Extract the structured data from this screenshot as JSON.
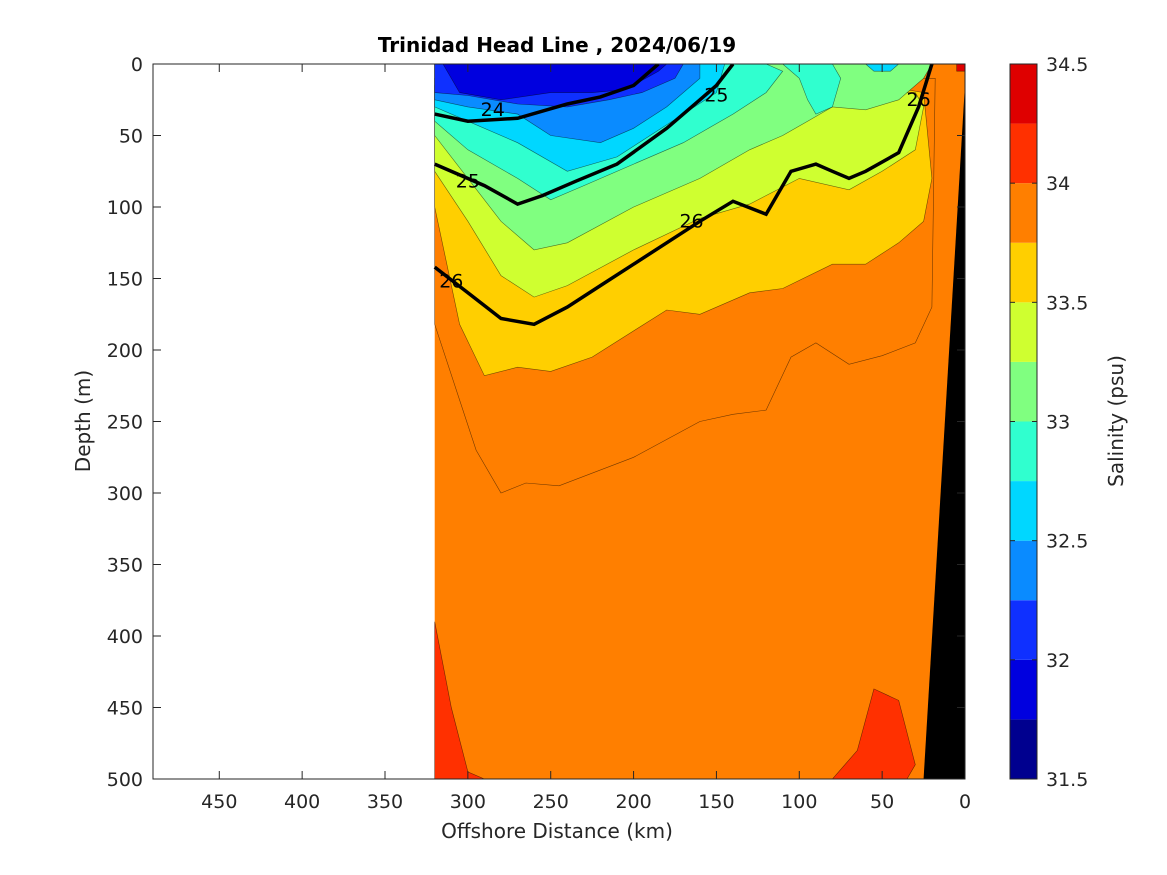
{
  "chart_data": {
    "type": "heatmap",
    "subtype": "filled contour section",
    "title": "Trinidad Head Line , 2024/06/19",
    "xlabel": "Offshore Distance (km)",
    "ylabel": "Depth (m)",
    "xlim": [
      490,
      0
    ],
    "x_reversed": true,
    "ylim": [
      0,
      500
    ],
    "y_reversed": true,
    "xticks": [
      450,
      400,
      350,
      300,
      250,
      200,
      150,
      100,
      50,
      0
    ],
    "yticks": [
      0,
      50,
      100,
      150,
      200,
      250,
      300,
      350,
      400,
      450,
      500
    ],
    "data_x_extent_km": [
      320,
      0
    ],
    "colorbar": {
      "label": "Salinity (psu)",
      "limits": [
        31.5,
        34.5
      ],
      "levels": [
        31.5,
        31.75,
        32.0,
        32.25,
        32.5,
        32.75,
        33.0,
        33.25,
        33.5,
        33.75,
        34.0,
        34.25,
        34.5
      ],
      "colors": [
        "#00008f",
        "#0000df",
        "#0f30ff",
        "#0a8bff",
        "#00d7ff",
        "#30ffcf",
        "#80ff80",
        "#cfff30",
        "#ffcf00",
        "#ff7f00",
        "#ff3000",
        "#df0000"
      ],
      "ticks": [
        31.5,
        32,
        32.5,
        33,
        33.5,
        34,
        34.5
      ]
    },
    "layers": [
      {
        "level_min": 34.0,
        "boundary": [
          [
            320,
            390
          ],
          [
            310,
            450
          ],
          [
            300,
            495
          ],
          [
            290,
            500
          ],
          [
            320,
            500
          ]
        ]
      },
      {
        "level_min": 34.0,
        "boundary": [
          [
            65,
            480
          ],
          [
            55,
            437
          ],
          [
            40,
            445
          ],
          [
            30,
            490
          ],
          [
            35,
            500
          ],
          [
            80,
            500
          ]
        ]
      },
      {
        "level_min": 33.75,
        "boundary": [
          [
            320,
            182
          ],
          [
            305,
            235
          ],
          [
            295,
            270
          ],
          [
            280,
            300
          ],
          [
            265,
            293
          ],
          [
            245,
            295
          ],
          [
            200,
            275
          ],
          [
            160,
            250
          ],
          [
            140,
            245
          ],
          [
            120,
            242
          ],
          [
            105,
            205
          ],
          [
            90,
            195
          ],
          [
            70,
            210
          ],
          [
            50,
            204
          ],
          [
            30,
            195
          ],
          [
            20,
            170
          ],
          [
            18,
            10
          ],
          [
            320,
            10
          ]
        ]
      },
      {
        "level_min": 33.5,
        "boundary": [
          [
            320,
            100
          ],
          [
            305,
            182
          ],
          [
            290,
            218
          ],
          [
            270,
            212
          ],
          [
            250,
            215
          ],
          [
            225,
            205
          ],
          [
            180,
            172
          ],
          [
            160,
            175
          ],
          [
            130,
            160
          ],
          [
            110,
            157
          ],
          [
            80,
            140
          ],
          [
            60,
            140
          ],
          [
            40,
            125
          ],
          [
            25,
            110
          ],
          [
            20,
            80
          ],
          [
            25,
            20
          ],
          [
            50,
            15
          ],
          [
            320,
            15
          ]
        ]
      },
      {
        "level_min": 33.25,
        "boundary": [
          [
            320,
            75
          ],
          [
            300,
            110
          ],
          [
            280,
            148
          ],
          [
            260,
            163
          ],
          [
            240,
            155
          ],
          [
            200,
            130
          ],
          [
            160,
            108
          ],
          [
            130,
            98
          ],
          [
            100,
            80
          ],
          [
            70,
            88
          ],
          [
            50,
            75
          ],
          [
            30,
            60
          ],
          [
            25,
            30
          ],
          [
            30,
            20
          ],
          [
            320,
            20
          ]
        ]
      },
      {
        "level_min": 33.0,
        "boundary": [
          [
            320,
            50
          ],
          [
            300,
            80
          ],
          [
            280,
            110
          ],
          [
            260,
            130
          ],
          [
            240,
            125
          ],
          [
            200,
            100
          ],
          [
            160,
            80
          ],
          [
            130,
            60
          ],
          [
            110,
            50
          ],
          [
            95,
            40
          ],
          [
            80,
            30
          ],
          [
            60,
            32
          ],
          [
            40,
            25
          ],
          [
            25,
            10
          ],
          [
            20,
            0
          ],
          [
            320,
            0
          ]
        ]
      },
      {
        "level_min": 32.75,
        "boundary": [
          [
            320,
            40
          ],
          [
            300,
            60
          ],
          [
            270,
            80
          ],
          [
            250,
            95
          ],
          [
            230,
            85
          ],
          [
            200,
            70
          ],
          [
            170,
            55
          ],
          [
            140,
            35
          ],
          [
            120,
            20
          ],
          [
            110,
            5
          ],
          [
            120,
            0
          ],
          [
            320,
            0
          ]
        ]
      },
      {
        "level_min": 32.5,
        "boundary": [
          [
            320,
            30
          ],
          [
            300,
            40
          ],
          [
            270,
            55
          ],
          [
            240,
            75
          ],
          [
            210,
            65
          ],
          [
            190,
            50
          ],
          [
            170,
            35
          ],
          [
            150,
            20
          ],
          [
            145,
            0
          ],
          [
            320,
            0
          ]
        ]
      },
      {
        "level_min": 32.25,
        "boundary": [
          [
            320,
            25
          ],
          [
            300,
            30
          ],
          [
            270,
            35
          ],
          [
            250,
            50
          ],
          [
            220,
            55
          ],
          [
            200,
            45
          ],
          [
            180,
            30
          ],
          [
            160,
            10
          ],
          [
            160,
            0
          ],
          [
            320,
            0
          ]
        ]
      },
      {
        "level_min": 32.0,
        "boundary": [
          [
            320,
            20
          ],
          [
            300,
            22
          ],
          [
            270,
            28
          ],
          [
            240,
            30
          ],
          [
            215,
            25
          ],
          [
            195,
            20
          ],
          [
            175,
            10
          ],
          [
            170,
            0
          ],
          [
            320,
            0
          ]
        ]
      },
      {
        "level_min": 31.75,
        "boundary": [
          [
            315,
            0
          ],
          [
            305,
            20
          ],
          [
            280,
            25
          ],
          [
            250,
            20
          ],
          [
            225,
            20
          ],
          [
            205,
            18
          ],
          [
            185,
            5
          ],
          [
            180,
            0
          ]
        ]
      },
      {
        "level_min": 32.75,
        "boundary": [
          [
            110,
            0
          ],
          [
            100,
            10
          ],
          [
            95,
            25
          ],
          [
            90,
            35
          ],
          [
            80,
            30
          ],
          [
            75,
            10
          ],
          [
            80,
            0
          ]
        ]
      },
      {
        "level_min": 32.5,
        "boundary": [
          [
            60,
            0
          ],
          [
            55,
            5
          ],
          [
            45,
            5
          ],
          [
            40,
            0
          ]
        ]
      },
      {
        "level_min": 34.25,
        "boundary": [
          [
            5,
            0
          ],
          [
            5,
            5
          ],
          [
            0,
            5
          ],
          [
            0,
            0
          ]
        ]
      }
    ],
    "density_contours": [
      {
        "label": "24",
        "points": [
          [
            320,
            35
          ],
          [
            300,
            40
          ],
          [
            270,
            38
          ],
          [
            240,
            28
          ],
          [
            220,
            23
          ],
          [
            200,
            15
          ],
          [
            190,
            5
          ],
          [
            185,
            0
          ]
        ],
        "labels_at": [
          [
            285,
            32
          ]
        ]
      },
      {
        "label": "25",
        "points": [
          [
            320,
            70
          ],
          [
            290,
            85
          ],
          [
            270,
            98
          ],
          [
            255,
            92
          ],
          [
            235,
            82
          ],
          [
            210,
            70
          ],
          [
            180,
            45
          ],
          [
            160,
            25
          ],
          [
            150,
            15
          ],
          [
            140,
            0
          ]
        ],
        "labels_at": [
          [
            300,
            82
          ],
          [
            150,
            22
          ]
        ]
      },
      {
        "label": "26",
        "points": [
          [
            320,
            142
          ],
          [
            300,
            160
          ],
          [
            280,
            178
          ],
          [
            260,
            182
          ],
          [
            240,
            170
          ],
          [
            220,
            155
          ],
          [
            200,
            140
          ],
          [
            180,
            125
          ],
          [
            160,
            110
          ],
          [
            140,
            96
          ],
          [
            120,
            105
          ],
          [
            105,
            75
          ],
          [
            90,
            70
          ],
          [
            80,
            75
          ],
          [
            70,
            80
          ],
          [
            60,
            75
          ],
          [
            40,
            62
          ],
          [
            28,
            30
          ],
          [
            20,
            0
          ]
        ],
        "labels_at": [
          [
            310,
            152
          ],
          [
            165,
            110
          ],
          [
            28,
            25
          ]
        ]
      }
    ]
  }
}
